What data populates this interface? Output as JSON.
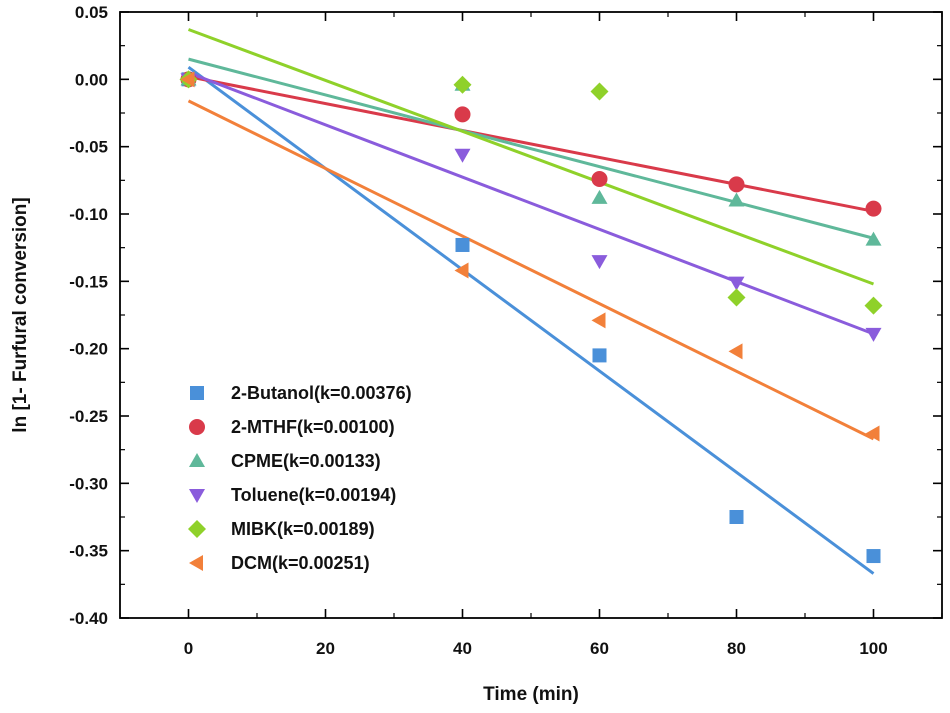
{
  "chart_data": {
    "type": "scatter",
    "title": "",
    "xlabel": "Time (min)",
    "ylabel": "ln [1- Furfural conversion]",
    "xlim": [
      -10,
      110
    ],
    "ylim": [
      -0.4,
      0.05
    ],
    "x_ticks": [
      0,
      20,
      40,
      60,
      80,
      100
    ],
    "x_tick_labels": [
      "0",
      "20",
      "40",
      "60",
      "80",
      "100"
    ],
    "y_ticks": [
      0.05,
      0.0,
      -0.05,
      -0.1,
      -0.15,
      -0.2,
      -0.25,
      -0.3,
      -0.35,
      -0.4
    ],
    "y_tick_labels": [
      "0.05",
      "0.00",
      "-0.05",
      "-0.10",
      "-0.15",
      "-0.20",
      "-0.25",
      "-0.30",
      "-0.35",
      "-0.40"
    ],
    "grid": false,
    "legend_position": "bottom-left",
    "series": [
      {
        "name": "2-Butanol(k=0.00376)",
        "color": "#4a90d9",
        "marker": "square",
        "x": [
          0,
          40,
          60,
          80,
          100
        ],
        "y": [
          0.0,
          -0.123,
          -0.205,
          -0.325,
          -0.354
        ],
        "fit": [
          [
            0,
            0.009
          ],
          [
            100,
            -0.367
          ]
        ]
      },
      {
        "name": "2-MTHF(k=0.00100)",
        "color": "#d93a4a",
        "marker": "circle",
        "x": [
          0,
          40,
          60,
          80,
          100
        ],
        "y": [
          0.0,
          -0.026,
          -0.074,
          -0.078,
          -0.096
        ],
        "fit": [
          [
            0,
            0.002
          ],
          [
            100,
            -0.098
          ]
        ]
      },
      {
        "name": "CPME(k=0.00133)",
        "color": "#5fb89a",
        "marker": "triangle-up",
        "x": [
          0,
          40,
          60,
          80,
          100
        ],
        "y": [
          0.0,
          -0.004,
          -0.088,
          -0.09,
          -0.119
        ],
        "fit": [
          [
            0,
            0.015
          ],
          [
            100,
            -0.118
          ]
        ]
      },
      {
        "name": "Toluene(k=0.00194)",
        "color": "#8a5cdc",
        "marker": "triangle-down",
        "x": [
          0,
          40,
          60,
          80,
          100
        ],
        "y": [
          0.0,
          -0.056,
          -0.135,
          -0.151,
          -0.189
        ],
        "fit": [
          [
            0,
            0.005
          ],
          [
            100,
            -0.189
          ]
        ]
      },
      {
        "name": "MIBK(k=0.00189)",
        "color": "#8fd12a",
        "marker": "diamond",
        "x": [
          0,
          40,
          60,
          80,
          100
        ],
        "y": [
          0.0,
          -0.004,
          -0.009,
          -0.162,
          -0.168
        ],
        "fit": [
          [
            0,
            0.037
          ],
          [
            100,
            -0.152
          ]
        ]
      },
      {
        "name": "DCM(k=0.00251)",
        "color": "#f2803a",
        "marker": "triangle-left",
        "x": [
          0,
          40,
          60,
          80,
          100
        ],
        "y": [
          0.0,
          -0.142,
          -0.179,
          -0.202,
          -0.263
        ],
        "fit": [
          [
            0,
            -0.016
          ],
          [
            100,
            -0.267
          ]
        ]
      }
    ]
  }
}
